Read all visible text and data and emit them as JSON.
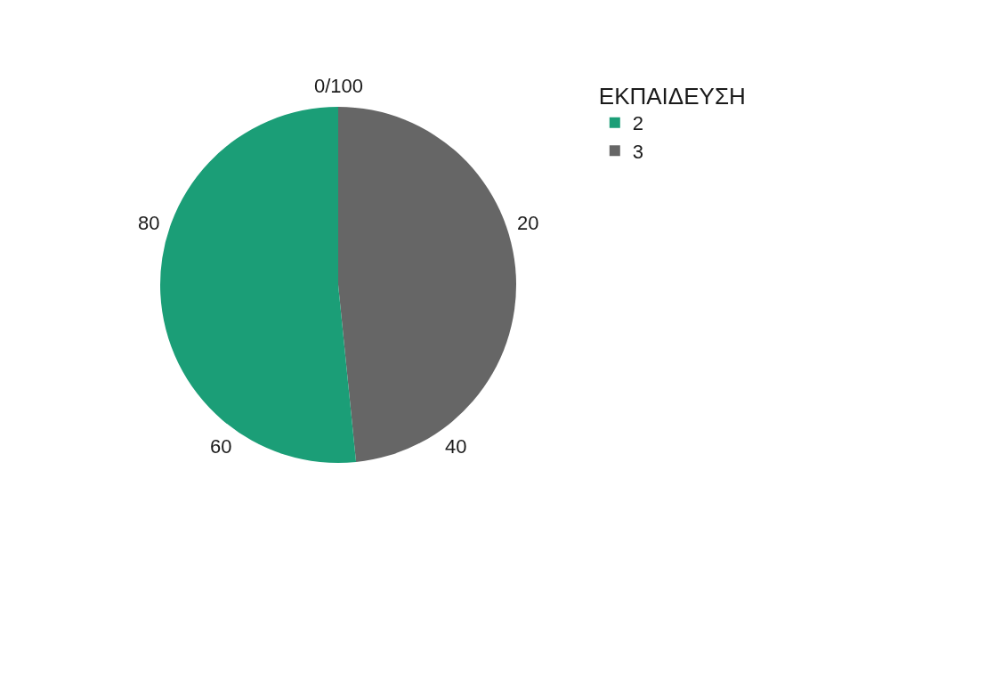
{
  "chart_data": {
    "type": "pie",
    "legend_title": "ΕΚΠΑΙΔΕΥΣΗ",
    "categories": [
      "2",
      "3"
    ],
    "values": [
      51.6,
      48.4
    ],
    "colors": [
      "#1b9e77",
      "#666666"
    ],
    "annotations": [
      "0/100",
      "20",
      "40",
      "60",
      "80"
    ],
    "legend": "top right"
  }
}
